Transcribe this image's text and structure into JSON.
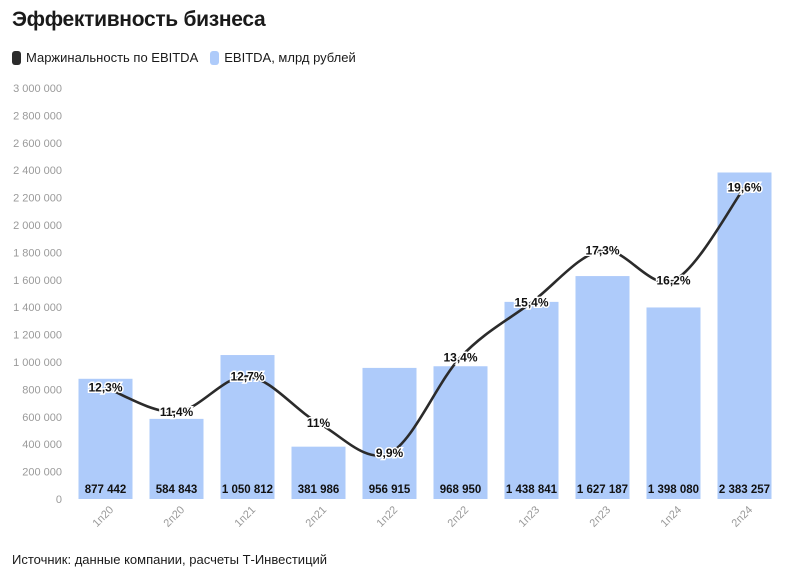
{
  "title": "Эффективность бизнеса",
  "legend": {
    "line_label": "Маржинальность по EBITDA",
    "bar_label": "EBITDA, млрд рублей"
  },
  "source": "Источник: данные компании, расчеты Т-Инвестиций",
  "colors": {
    "bar": "#aecbfa",
    "line": "#2b2b2b"
  },
  "chart_data": {
    "type": "bar",
    "categories": [
      "1п20",
      "2п20",
      "1п21",
      "2п21",
      "1п22",
      "2п22",
      "1п23",
      "2п23",
      "1п24",
      "2п24"
    ],
    "series": [
      {
        "name": "EBITDA, млрд рублей",
        "type": "bar",
        "values": [
          877442,
          584843,
          1050812,
          381986,
          956915,
          968950,
          1438841,
          1627187,
          1398080,
          2383257
        ],
        "labels": [
          "877 442",
          "584 843",
          "1 050 812",
          "381 986",
          "956 915",
          "968 950",
          "1 438 841",
          "1 627 187",
          "1 398 080",
          "2 383 257"
        ]
      },
      {
        "name": "Маржинальность по EBITDA",
        "type": "line",
        "values": [
          12.3,
          11.4,
          12.7,
          11.0,
          9.9,
          13.4,
          15.4,
          17.3,
          16.2,
          19.6
        ],
        "labels": [
          "12,3%",
          "11,4%",
          "12,7%",
          "11%",
          "9,9%",
          "13,4%",
          "15,4%",
          "17,3%",
          "16,2%",
          "19,6%"
        ]
      }
    ],
    "ylim": [
      0,
      3000000
    ],
    "yticks": [
      0,
      200000,
      400000,
      600000,
      800000,
      1000000,
      1200000,
      1400000,
      1600000,
      1800000,
      2000000,
      2200000,
      2400000,
      2600000,
      2800000,
      3000000
    ],
    "ytick_labels": [
      "0",
      "200 000",
      "400 000",
      "600 000",
      "800 000",
      "1 000 000",
      "1 200 000",
      "1 400 000",
      "1 600 000",
      "1 800 000",
      "2 000 000",
      "2 200 000",
      "2 400 000",
      "2 600 000",
      "2 800 000",
      "3 000 000"
    ],
    "grid": false,
    "legend_position": "top-left"
  }
}
